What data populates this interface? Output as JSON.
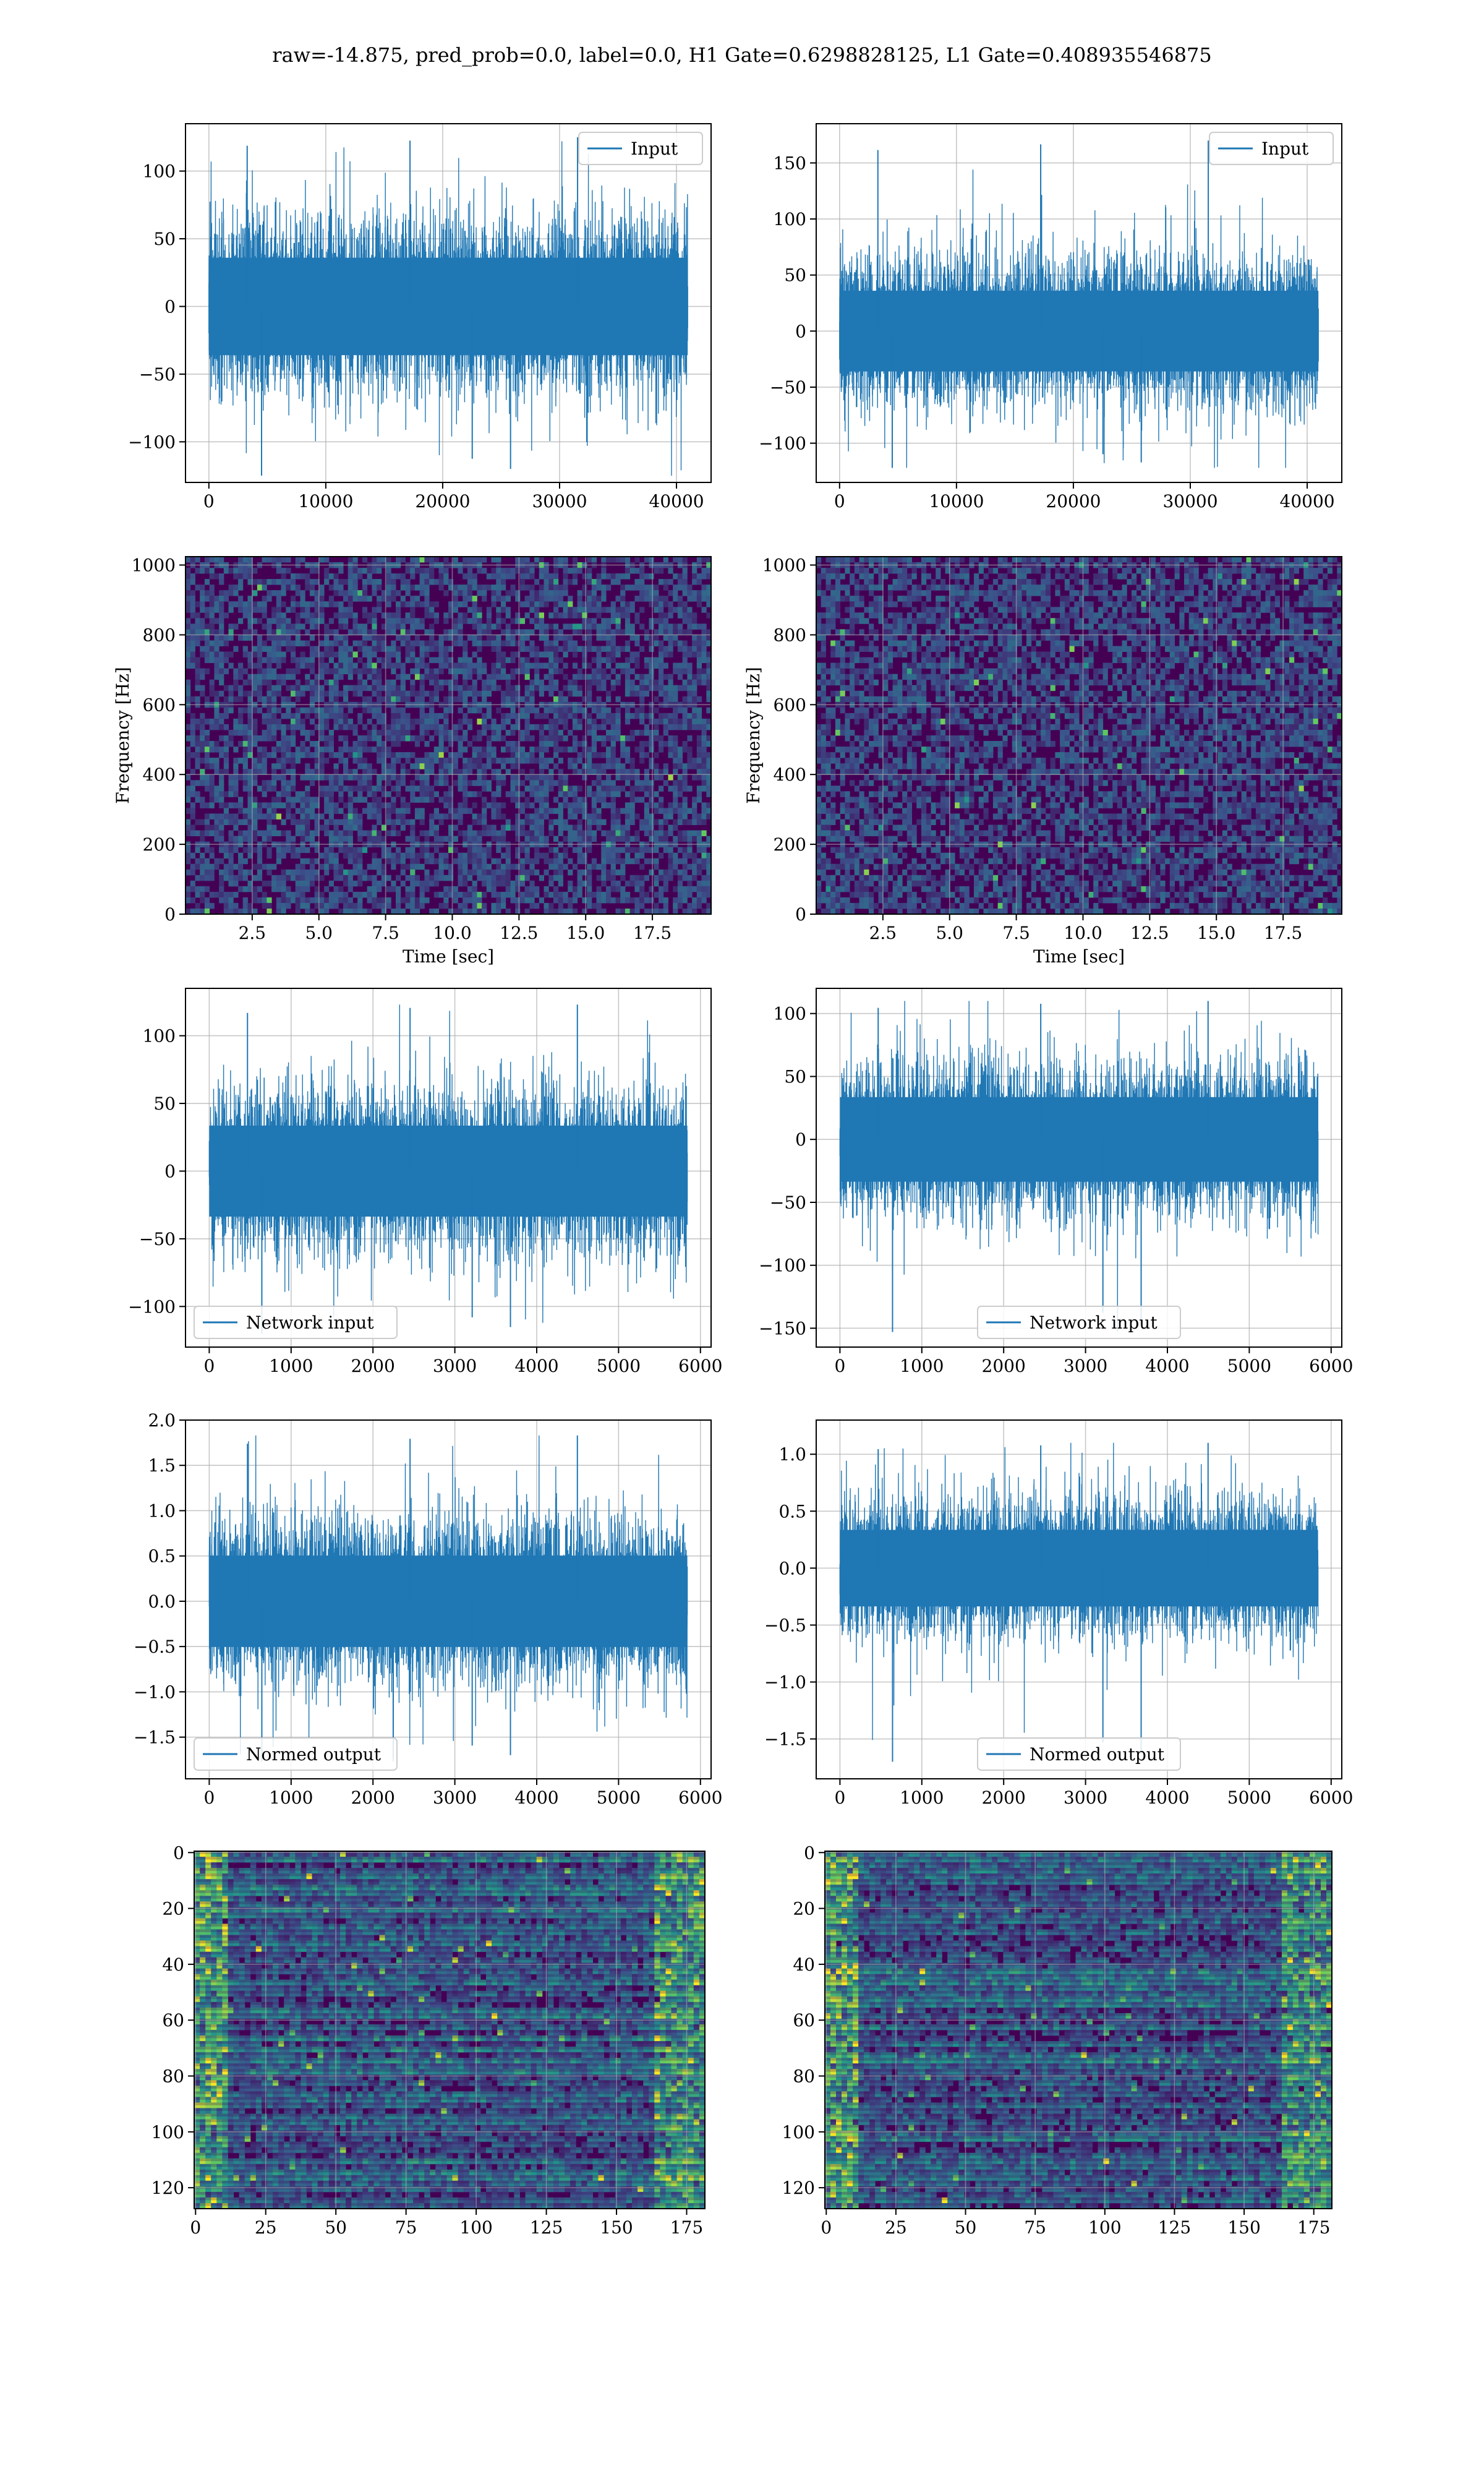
{
  "figure": {
    "suptitle": "raw=-14.875, pred_prob=0.0, label=0.0, H1 Gate=0.6298828125, L1 Gate=0.408935546875"
  },
  "colors": {
    "line": "#1f77b4",
    "grid": "#b0b0b0",
    "axes_edge": "#000000",
    "viridis": [
      "#440154",
      "#3b528b",
      "#21918c",
      "#5ec962",
      "#fde725"
    ]
  },
  "chart_data": [
    {
      "id": "h1_input",
      "type": "line",
      "title": "",
      "xlabel": "",
      "ylabel": "",
      "series": [
        {
          "name": "Input",
          "n_points": 40960,
          "amplitude_range": [
            -125,
            125
          ],
          "y_approx_stats": {
            "std": 30
          }
        }
      ],
      "xlim": [
        -2000,
        42960
      ],
      "ylim": [
        -130,
        135
      ],
      "xticks": [
        0,
        10000,
        20000,
        30000,
        40000
      ],
      "xtick_labels": [
        "0",
        "10000",
        "20000",
        "30000",
        "40000"
      ],
      "yticks": [
        -100,
        -50,
        0,
        50,
        100
      ],
      "ytick_labels": [
        "−100",
        "−50",
        "0",
        "50",
        "100"
      ],
      "legend": "upper right",
      "grid": true
    },
    {
      "id": "l1_input",
      "type": "line",
      "title": "",
      "xlabel": "",
      "ylabel": "",
      "series": [
        {
          "name": "Input",
          "n_points": 40960,
          "amplitude_range": [
            -122,
            170
          ],
          "y_approx_stats": {
            "std": 30
          }
        }
      ],
      "xlim": [
        -2000,
        42960
      ],
      "ylim": [
        -135,
        185
      ],
      "xticks": [
        0,
        10000,
        20000,
        30000,
        40000
      ],
      "xtick_labels": [
        "0",
        "10000",
        "20000",
        "30000",
        "40000"
      ],
      "yticks": [
        -100,
        -50,
        0,
        50,
        100,
        150
      ],
      "ytick_labels": [
        "−100",
        "−50",
        "0",
        "50",
        "100",
        "150"
      ],
      "legend": "upper right",
      "grid": true
    },
    {
      "id": "h1_spectrogram",
      "type": "heatmap",
      "title": "",
      "xlabel": "Time [sec]",
      "ylabel": "Frequency [Hz]",
      "xlim": [
        0,
        19.7
      ],
      "ylim": [
        0,
        1024
      ],
      "xticks": [
        2.5,
        5.0,
        7.5,
        10.0,
        12.5,
        15.0,
        17.5
      ],
      "xtick_labels": [
        "2.5",
        "5.0",
        "7.5",
        "10.0",
        "12.5",
        "15.0",
        "17.5"
      ],
      "yticks": [
        0,
        200,
        400,
        600,
        800,
        1000
      ],
      "ytick_labels": [
        "0",
        "200",
        "400",
        "600",
        "800",
        "1000"
      ],
      "colormap": "viridis",
      "grid": true
    },
    {
      "id": "l1_spectrogram",
      "type": "heatmap",
      "title": "",
      "xlabel": "Time [sec]",
      "ylabel": "Frequency [Hz]",
      "xlim": [
        0,
        19.7
      ],
      "ylim": [
        0,
        1024
      ],
      "xticks": [
        2.5,
        5.0,
        7.5,
        10.0,
        12.5,
        15.0,
        17.5
      ],
      "xtick_labels": [
        "2.5",
        "5.0",
        "7.5",
        "10.0",
        "12.5",
        "15.0",
        "17.5"
      ],
      "yticks": [
        0,
        200,
        400,
        600,
        800,
        1000
      ],
      "ytick_labels": [
        "0",
        "200",
        "400",
        "600",
        "800",
        "1000"
      ],
      "colormap": "viridis",
      "grid": true
    },
    {
      "id": "h1_network_input",
      "type": "line",
      "title": "",
      "xlabel": "",
      "ylabel": "",
      "series": [
        {
          "name": "Network input",
          "n_points": 5840,
          "amplitude_range": [
            -120,
            123
          ],
          "y_approx_stats": {
            "std": 28
          }
        }
      ],
      "xlim": [
        -290,
        6130
      ],
      "ylim": [
        -130,
        135
      ],
      "xticks": [
        0,
        1000,
        2000,
        3000,
        4000,
        5000,
        6000
      ],
      "xtick_labels": [
        "0",
        "1000",
        "2000",
        "3000",
        "4000",
        "5000",
        "6000"
      ],
      "yticks": [
        -100,
        -50,
        0,
        50,
        100
      ],
      "ytick_labels": [
        "−100",
        "−50",
        "0",
        "50",
        "100"
      ],
      "legend": "lower left",
      "grid": true
    },
    {
      "id": "l1_network_input",
      "type": "line",
      "title": "",
      "xlabel": "",
      "ylabel": "",
      "series": [
        {
          "name": "Network input",
          "n_points": 5840,
          "amplitude_range": [
            -153,
            110
          ],
          "y_approx_stats": {
            "std": 28
          }
        }
      ],
      "xlim": [
        -290,
        6130
      ],
      "ylim": [
        -165,
        120
      ],
      "xticks": [
        0,
        1000,
        2000,
        3000,
        4000,
        5000,
        6000
      ],
      "xtick_labels": [
        "0",
        "1000",
        "2000",
        "3000",
        "4000",
        "5000",
        "6000"
      ],
      "yticks": [
        -150,
        -100,
        -50,
        0,
        50,
        100
      ],
      "ytick_labels": [
        "−150",
        "−100",
        "−50",
        "0",
        "50",
        "100"
      ],
      "legend": "lower center",
      "grid": true
    },
    {
      "id": "h1_normed_output",
      "type": "line",
      "title": "",
      "xlabel": "",
      "ylabel": "",
      "series": [
        {
          "name": "Normed output",
          "n_points": 5840,
          "amplitude_range": [
            -1.77,
            1.83
          ],
          "y_approx_stats": {
            "std": 0.42
          }
        }
      ],
      "xlim": [
        -290,
        6130
      ],
      "ylim": [
        -1.96,
        2.0
      ],
      "xticks": [
        0,
        1000,
        2000,
        3000,
        4000,
        5000,
        6000
      ],
      "xtick_labels": [
        "0",
        "1000",
        "2000",
        "3000",
        "4000",
        "5000",
        "6000"
      ],
      "yticks": [
        -1.5,
        -1.0,
        -0.5,
        0.0,
        0.5,
        1.0,
        1.5,
        2.0
      ],
      "ytick_labels": [
        "−1.5",
        "−1.0",
        "−0.5",
        "0.0",
        "0.5",
        "1.0",
        "1.5",
        "2.0"
      ],
      "legend": "lower left",
      "grid": true
    },
    {
      "id": "l1_normed_output",
      "type": "line",
      "title": "",
      "xlabel": "",
      "ylabel": "",
      "series": [
        {
          "name": "Normed output",
          "n_points": 5840,
          "amplitude_range": [
            -1.7,
            1.1
          ],
          "y_approx_stats": {
            "std": 0.28
          }
        }
      ],
      "xlim": [
        -290,
        6130
      ],
      "ylim": [
        -1.85,
        1.3
      ],
      "xticks": [
        0,
        1000,
        2000,
        3000,
        4000,
        5000,
        6000
      ],
      "xtick_labels": [
        "0",
        "1000",
        "2000",
        "3000",
        "4000",
        "5000",
        "6000"
      ],
      "yticks": [
        -1.5,
        -1.0,
        -0.5,
        0.0,
        0.5,
        1.0
      ],
      "ytick_labels": [
        "−1.5",
        "−1.0",
        "−0.5",
        "0.0",
        "0.5",
        "1.0"
      ],
      "legend": "lower center",
      "grid": true
    },
    {
      "id": "h1_features",
      "type": "heatmap",
      "title": "",
      "xlabel": "",
      "ylabel": "",
      "shape": [
        128,
        182
      ],
      "xlim": [
        -0.5,
        181.5
      ],
      "ylim": [
        127.5,
        -0.5
      ],
      "xticks": [
        0,
        25,
        50,
        75,
        100,
        125,
        150,
        175
      ],
      "xtick_labels": [
        "0",
        "25",
        "50",
        "75",
        "100",
        "125",
        "150",
        "175"
      ],
      "yticks": [
        0,
        20,
        40,
        60,
        80,
        100,
        120
      ],
      "ytick_labels": [
        "0",
        "20",
        "40",
        "60",
        "80",
        "100",
        "120"
      ],
      "colormap": "viridis",
      "grid": true
    },
    {
      "id": "l1_features",
      "type": "heatmap",
      "title": "",
      "xlabel": "",
      "ylabel": "",
      "shape": [
        128,
        182
      ],
      "xlim": [
        -0.5,
        181.5
      ],
      "ylim": [
        127.5,
        -0.5
      ],
      "xticks": [
        0,
        25,
        50,
        75,
        100,
        125,
        150,
        175
      ],
      "xtick_labels": [
        "0",
        "25",
        "50",
        "75",
        "100",
        "125",
        "150",
        "175"
      ],
      "yticks": [
        0,
        20,
        40,
        60,
        80,
        100,
        120
      ],
      "ytick_labels": [
        "0",
        "20",
        "40",
        "60",
        "80",
        "100",
        "120"
      ],
      "colormap": "viridis",
      "grid": true
    }
  ]
}
